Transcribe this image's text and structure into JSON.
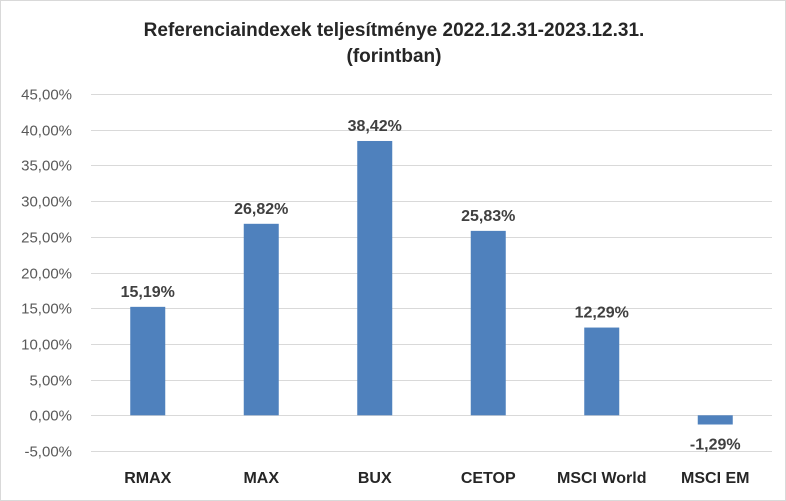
{
  "chart_data": {
    "type": "bar",
    "title_line1": "Referenciaindexek teljesítménye 2022.12.31-2023.12.31.",
    "title_line2": "(forintban)",
    "xlabel": "",
    "ylabel": "",
    "ylim": [
      -5,
      45
    ],
    "yticks": [
      {
        "value": 45,
        "label": "45,00%"
      },
      {
        "value": 40,
        "label": "40,00%"
      },
      {
        "value": 35,
        "label": "35,00%"
      },
      {
        "value": 30,
        "label": "30,00%"
      },
      {
        "value": 25,
        "label": "25,00%"
      },
      {
        "value": 20,
        "label": "20,00%"
      },
      {
        "value": 15,
        "label": "15,00%"
      },
      {
        "value": 10,
        "label": "10,00%"
      },
      {
        "value": 5,
        "label": "5,00%"
      },
      {
        "value": 0,
        "label": "0,00%"
      },
      {
        "value": -5,
        "label": "-5,00%"
      }
    ],
    "categories": [
      "RMAX",
      "MAX",
      "BUX",
      "CETOP",
      "MSCI World",
      "MSCI EM"
    ],
    "values": [
      15.19,
      26.82,
      38.42,
      25.83,
      12.29,
      -1.29
    ],
    "value_labels": [
      "15,19%",
      "26,82%",
      "38,42%",
      "25,83%",
      "12,29%",
      "-1,29%"
    ],
    "grid": true,
    "legend": "none",
    "bar_color": "#4f81bd"
  }
}
